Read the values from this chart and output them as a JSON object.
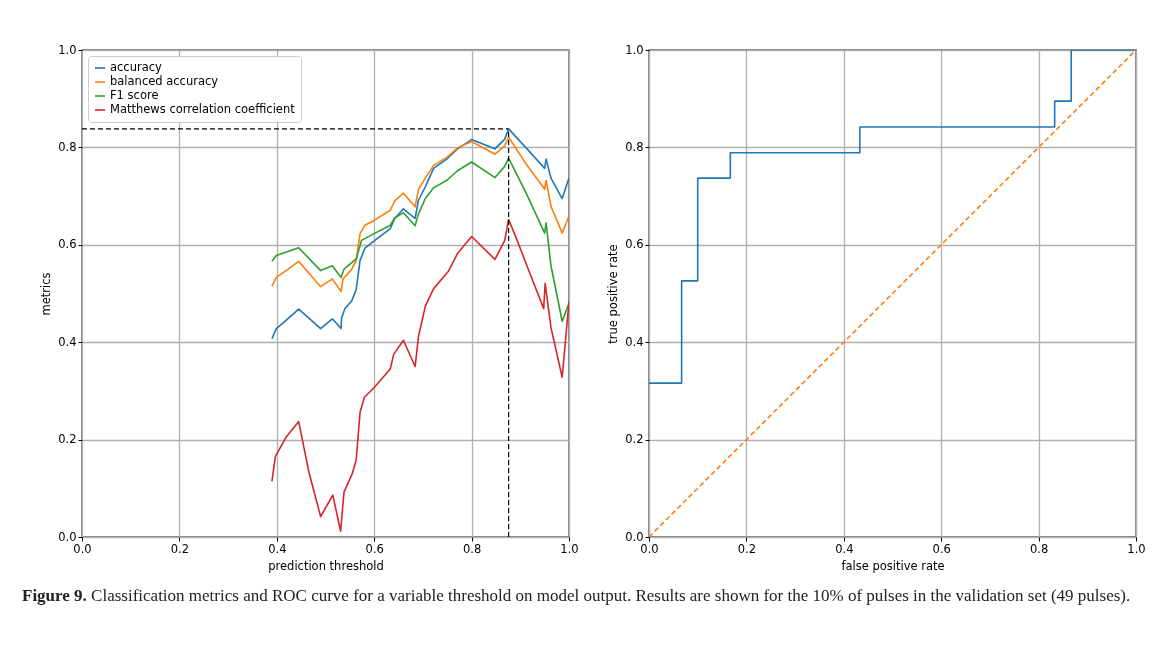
{
  "chart_data": [
    {
      "type": "line",
      "xlabel": "prediction threshold",
      "ylabel": "metrics",
      "xlim": [
        0,
        1
      ],
      "ylim": [
        0,
        1
      ],
      "xticks": [
        {
          "value": 0,
          "label": "0.0"
        },
        {
          "value": 0.2,
          "label": "0.2"
        },
        {
          "value": 0.4,
          "label": "0.4"
        },
        {
          "value": 0.6,
          "label": "0.6"
        },
        {
          "value": 0.8,
          "label": "0.8"
        },
        {
          "value": 1,
          "label": "1.0"
        }
      ],
      "yticks": [
        {
          "value": 0,
          "label": "0.0"
        },
        {
          "value": 0.2,
          "label": "0.2"
        },
        {
          "value": 0.4,
          "label": "0.4"
        },
        {
          "value": 0.6,
          "label": "0.6"
        },
        {
          "value": 0.8,
          "label": "0.8"
        },
        {
          "value": 1,
          "label": "1.0"
        }
      ],
      "grid": true,
      "legend": "top left",
      "series": [
        {
          "name": "accuracy",
          "color": "#1f77b4",
          "x": [
            0.39,
            0.399,
            0.419,
            0.445,
            0.49,
            0.514,
            0.532,
            0.533,
            0.54,
            0.554,
            0.563,
            0.571,
            0.581,
            0.6,
            0.633,
            0.642,
            0.66,
            0.684,
            0.691,
            0.705,
            0.722,
            0.75,
            0.771,
            0.8,
            0.848,
            0.868,
            0.876,
            0.912,
            0.95,
            0.953,
            0.963,
            0.986,
            1.0
          ],
          "values": [
            0.407,
            0.428,
            0.445,
            0.468,
            0.428,
            0.448,
            0.428,
            0.45,
            0.469,
            0.485,
            0.508,
            0.568,
            0.593,
            0.608,
            0.633,
            0.654,
            0.674,
            0.654,
            0.692,
            0.719,
            0.757,
            0.777,
            0.797,
            0.816,
            0.797,
            0.817,
            0.838,
            0.799,
            0.757,
            0.776,
            0.737,
            0.695,
            0.737
          ]
        },
        {
          "name": "balanced accuracy",
          "color": "#ff7f0e",
          "x": [
            0.39,
            0.399,
            0.419,
            0.445,
            0.49,
            0.514,
            0.532,
            0.536,
            0.554,
            0.563,
            0.571,
            0.581,
            0.6,
            0.633,
            0.642,
            0.66,
            0.684,
            0.691,
            0.705,
            0.722,
            0.75,
            0.771,
            0.8,
            0.848,
            0.868,
            0.876,
            0.912,
            0.95,
            0.953,
            0.963,
            0.986,
            1.0
          ],
          "values": [
            0.515,
            0.533,
            0.547,
            0.566,
            0.514,
            0.53,
            0.504,
            0.53,
            0.55,
            0.568,
            0.623,
            0.64,
            0.65,
            0.671,
            0.69,
            0.706,
            0.678,
            0.714,
            0.737,
            0.763,
            0.78,
            0.799,
            0.812,
            0.786,
            0.803,
            0.821,
            0.766,
            0.714,
            0.732,
            0.679,
            0.624,
            0.659
          ]
        },
        {
          "name": "F1 score",
          "color": "#2ca02c",
          "x": [
            0.39,
            0.399,
            0.445,
            0.49,
            0.514,
            0.532,
            0.538,
            0.563,
            0.574,
            0.6,
            0.633,
            0.642,
            0.66,
            0.684,
            0.691,
            0.705,
            0.722,
            0.75,
            0.771,
            0.8,
            0.848,
            0.868,
            0.876,
            0.912,
            0.95,
            0.953,
            0.963,
            0.986,
            1.0
          ],
          "values": [
            0.566,
            0.578,
            0.594,
            0.547,
            0.557,
            0.533,
            0.55,
            0.571,
            0.609,
            0.623,
            0.64,
            0.655,
            0.666,
            0.639,
            0.664,
            0.695,
            0.717,
            0.733,
            0.752,
            0.77,
            0.738,
            0.761,
            0.778,
            0.706,
            0.624,
            0.645,
            0.557,
            0.443,
            0.48
          ]
        },
        {
          "name": "Matthews correlation coefficient",
          "color": "#d62728",
          "x": [
            0.39,
            0.397,
            0.419,
            0.445,
            0.466,
            0.49,
            0.515,
            0.531,
            0.538,
            0.555,
            0.563,
            0.571,
            0.58,
            0.6,
            0.633,
            0.64,
            0.66,
            0.684,
            0.691,
            0.705,
            0.722,
            0.752,
            0.771,
            0.8,
            0.848,
            0.868,
            0.876,
            0.894,
            0.912,
            0.948,
            0.951,
            0.963,
            0.986,
            1.0
          ],
          "values": [
            0.114,
            0.165,
            0.205,
            0.237,
            0.133,
            0.042,
            0.086,
            0.012,
            0.092,
            0.13,
            0.158,
            0.256,
            0.287,
            0.307,
            0.345,
            0.375,
            0.404,
            0.35,
            0.412,
            0.474,
            0.51,
            0.545,
            0.582,
            0.617,
            0.57,
            0.609,
            0.652,
            0.608,
            0.561,
            0.469,
            0.521,
            0.43,
            0.328,
            0.484
          ]
        }
      ],
      "ref_lines": [
        {
          "axis": "x",
          "value": 0.876,
          "color": "#000000",
          "line_style": "dashed"
        },
        {
          "axis": "y",
          "value": 0.838,
          "color": "#000000",
          "line_style": "dashed"
        }
      ]
    },
    {
      "type": "step",
      "xlabel": "false positive rate",
      "ylabel": "true positive rate",
      "xlim": [
        0,
        1
      ],
      "ylim": [
        0,
        1
      ],
      "xticks": [
        {
          "value": 0,
          "label": "0.0"
        },
        {
          "value": 0.2,
          "label": "0.2"
        },
        {
          "value": 0.4,
          "label": "0.4"
        },
        {
          "value": 0.6,
          "label": "0.6"
        },
        {
          "value": 0.8,
          "label": "0.8"
        },
        {
          "value": 1,
          "label": "1.0"
        }
      ],
      "yticks": [
        {
          "value": 0,
          "label": "0.0"
        },
        {
          "value": 0.2,
          "label": "0.2"
        },
        {
          "value": 0.4,
          "label": "0.4"
        },
        {
          "value": 0.6,
          "label": "0.6"
        },
        {
          "value": 0.8,
          "label": "0.8"
        },
        {
          "value": 1,
          "label": "1.0"
        }
      ],
      "grid": true,
      "series": [
        {
          "color": "#1f77b4",
          "x": [
            0,
            0.067,
            0.1,
            0.167,
            0.433,
            0.833,
            0.867,
            1.0
          ],
          "values": [
            0.316,
            0.526,
            0.737,
            0.789,
            0.842,
            0.895,
            1.0,
            1.0
          ]
        },
        {
          "type": "line",
          "color": "#ff7f0e",
          "line_style": "dashed",
          "x": [
            0,
            1
          ],
          "values": [
            0,
            1
          ]
        }
      ],
      "annotations": [
        "Figure 9. Classification metrics and ROC curve for a variable threshold on model output. Results are shown for the 10% of pulses in the validation set (49 pulses)."
      ]
    }
  ]
}
